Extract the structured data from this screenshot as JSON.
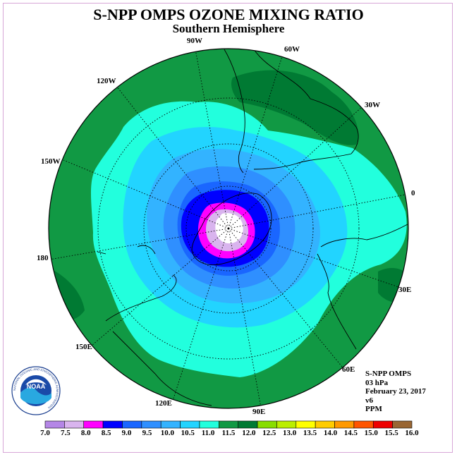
{
  "header": {
    "title": "S-NPP OMPS OZONE MIXING RATIO",
    "subtitle": "Southern Hemisphere"
  },
  "longitude_labels": [
    {
      "text": "90W",
      "key": "lon_90w"
    },
    {
      "text": "60W",
      "key": "lon_60w"
    },
    {
      "text": "30W",
      "key": "lon_30w"
    },
    {
      "text": "0",
      "key": "lon_0"
    },
    {
      "text": "30E",
      "key": "lon_30e"
    },
    {
      "text": "60E",
      "key": "lon_60e"
    },
    {
      "text": "90E",
      "key": "lon_90e"
    },
    {
      "text": "120E",
      "key": "lon_120e"
    },
    {
      "text": "150E",
      "key": "lon_150e"
    },
    {
      "text": "180",
      "key": "lon_180"
    },
    {
      "text": "150W",
      "key": "lon_150w"
    },
    {
      "text": "120W",
      "key": "lon_120w"
    }
  ],
  "info": {
    "instrument": "S-NPP OMPS",
    "level": "03 hPa",
    "date": "February 23, 2017",
    "version": "v6",
    "units": "PPM"
  },
  "logo": {
    "text": "NOAA",
    "ring_text": "NATIONAL OCEANIC AND ATMOSPHERIC ADMINISTRATION"
  },
  "colorbar": {
    "labels": [
      "7.0",
      "7.5",
      "8.0",
      "8.5",
      "9.0",
      "9.5",
      "10.0",
      "10.5",
      "11.0",
      "11.5",
      "12.0",
      "12.5",
      "13.0",
      "13.5",
      "14.0",
      "14.5",
      "15.0",
      "15.5",
      "16.0"
    ],
    "colors": [
      "#b486e6",
      "#d9b4ee",
      "#ff00ff",
      "#0000ff",
      "#1a66ff",
      "#2f8fff",
      "#33b3ff",
      "#22d4ff",
      "#22ffdd",
      "#119944",
      "#007a33",
      "#88dd00",
      "#bbee00",
      "#ffff00",
      "#ffcc00",
      "#ff9900",
      "#ff5500",
      "#ee0000",
      "#996633"
    ]
  },
  "colors": {
    "outer": "#119944",
    "ocean_dark": "#007a33",
    "aqua": "#22ffdd",
    "cyan": "#22d4ff",
    "lightblue": "#33b3ff",
    "midblue": "#2f8fff",
    "blue2": "#1a66ff",
    "blue": "#0000ff",
    "magenta": "#ff00ff",
    "lilac": "#d9b4ee",
    "white": "#ffffff"
  }
}
